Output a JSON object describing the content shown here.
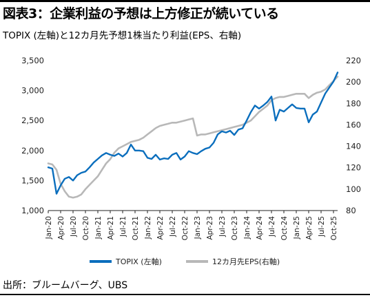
{
  "header": {
    "title": "図表3：企業利益の予想は上方修正が続いている",
    "subtitle": "TOPIX (左軸)と12カ月先予想1株当たり利益(EPS、右軸)"
  },
  "footer": {
    "source": "出所：ブルームバーグ、UBS"
  },
  "chart_data": {
    "type": "line",
    "title": "図表3：企業利益の予想は上方修正が続いている",
    "subtitle": "TOPIX (左軸)と12カ月先予想1株当たり利益(EPS、右軸)",
    "x_ticks": [
      "Jan-20",
      "Apr-20",
      "Jul-20",
      "Oct-20",
      "Jan-21",
      "Apr-21",
      "Jul-21",
      "Oct-21",
      "Jan-22",
      "Apr-22",
      "Jul-22",
      "Oct-22",
      "Jan-23",
      "Apr-23",
      "Jul-23",
      "Oct-23",
      "Jan-24",
      "Apr-24",
      "Jul-24",
      "Oct-24",
      "Jan-25",
      "Apr-25",
      "Jul-25",
      "Oct-25"
    ],
    "y_left": {
      "ticks": [
        "1,000",
        "1,500",
        "2,000",
        "2,500",
        "3,000",
        "3,500"
      ],
      "min": 1000,
      "max": 3500
    },
    "y_right": {
      "ticks": [
        "80",
        "100",
        "120",
        "140",
        "160",
        "180",
        "200",
        "220"
      ],
      "min": 80,
      "max": 220
    },
    "grid": false,
    "legend_position": "bottom",
    "series": [
      {
        "name": "TOPIX (左軸)",
        "axis": "left",
        "color": "#0a6ebd",
        "x": [
          "2020-01",
          "2020-02",
          "2020-03",
          "2020-04",
          "2020-05",
          "2020-06",
          "2020-07",
          "2020-08",
          "2020-09",
          "2020-10",
          "2020-11",
          "2020-12",
          "2021-01",
          "2021-02",
          "2021-03",
          "2021-04",
          "2021-05",
          "2021-06",
          "2021-07",
          "2021-08",
          "2021-09",
          "2021-10",
          "2021-11",
          "2021-12",
          "2022-01",
          "2022-02",
          "2022-03",
          "2022-04",
          "2022-05",
          "2022-06",
          "2022-07",
          "2022-08",
          "2022-09",
          "2022-10",
          "2022-11",
          "2022-12",
          "2023-01",
          "2023-02",
          "2023-03",
          "2023-04",
          "2023-05",
          "2023-06",
          "2023-07",
          "2023-08",
          "2023-09",
          "2023-10",
          "2023-11",
          "2023-12",
          "2024-01",
          "2024-02",
          "2024-03",
          "2024-04",
          "2024-05",
          "2024-06",
          "2024-07",
          "2024-08",
          "2024-09",
          "2024-10",
          "2024-11",
          "2024-12",
          "2025-01",
          "2025-02",
          "2025-03",
          "2025-04",
          "2025-05",
          "2025-06",
          "2025-07",
          "2025-08",
          "2025-09",
          "2025-10",
          "2025-11"
        ],
        "values": [
          1720,
          1700,
          1280,
          1420,
          1530,
          1560,
          1500,
          1590,
          1630,
          1650,
          1720,
          1800,
          1860,
          1920,
          1960,
          1930,
          1910,
          1950,
          1900,
          1960,
          2100,
          2000,
          2000,
          1990,
          1880,
          1860,
          1930,
          1850,
          1870,
          1860,
          1930,
          1960,
          1850,
          1900,
          1990,
          1960,
          1940,
          1990,
          2030,
          2050,
          2130,
          2270,
          2320,
          2300,
          2330,
          2260,
          2350,
          2370,
          2500,
          2640,
          2750,
          2700,
          2750,
          2810,
          2900,
          2500,
          2680,
          2650,
          2710,
          2770,
          2710,
          2700,
          2700,
          2470,
          2600,
          2650,
          2800,
          2950,
          3050,
          3150,
          3300
        ]
      },
      {
        "name": "12カ月先EPS(右軸)",
        "axis": "right",
        "color": "#b8b8b8",
        "x": [
          "2020-01",
          "2020-02",
          "2020-03",
          "2020-04",
          "2020-05",
          "2020-06",
          "2020-07",
          "2020-08",
          "2020-09",
          "2020-10",
          "2020-11",
          "2020-12",
          "2021-01",
          "2021-02",
          "2021-03",
          "2021-04",
          "2021-05",
          "2021-06",
          "2021-07",
          "2021-08",
          "2021-09",
          "2021-10",
          "2021-11",
          "2021-12",
          "2022-01",
          "2022-02",
          "2022-03",
          "2022-04",
          "2022-05",
          "2022-06",
          "2022-07",
          "2022-08",
          "2022-09",
          "2022-10",
          "2022-11",
          "2022-12",
          "2023-01",
          "2023-02",
          "2023-03",
          "2023-04",
          "2023-05",
          "2023-06",
          "2023-07",
          "2023-08",
          "2023-09",
          "2023-10",
          "2023-11",
          "2023-12",
          "2024-01",
          "2024-02",
          "2024-03",
          "2024-04",
          "2024-05",
          "2024-06",
          "2024-07",
          "2024-08",
          "2024-09",
          "2024-10",
          "2024-11",
          "2024-12",
          "2025-01",
          "2025-02",
          "2025-03",
          "2025-04",
          "2025-05",
          "2025-06",
          "2025-07",
          "2025-08",
          "2025-09",
          "2025-10",
          "2025-11"
        ],
        "values": [
          124,
          123,
          118,
          105,
          98,
          93,
          92,
          93,
          95,
          100,
          104,
          108,
          112,
          118,
          124,
          128,
          134,
          138,
          140,
          142,
          144,
          145,
          146,
          148,
          151,
          154,
          157,
          159,
          160,
          161,
          162,
          162,
          163,
          164,
          165,
          166,
          150,
          151,
          151,
          152,
          153,
          154,
          155,
          156,
          157,
          158,
          159,
          160,
          162,
          164,
          168,
          172,
          175,
          178,
          183,
          185,
          186,
          186,
          187,
          188,
          189,
          189,
          189,
          185,
          188,
          190,
          191,
          193,
          197,
          201,
          205
        ]
      }
    ]
  }
}
